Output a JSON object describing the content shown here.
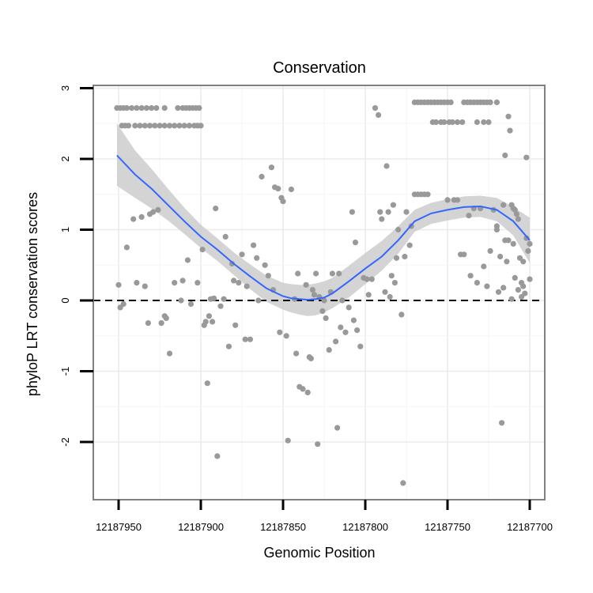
{
  "chart_data": {
    "type": "scatter",
    "title": "Conservation",
    "xlabel": "Genomic Position",
    "ylabel": "phyloP LRT conservation scores",
    "x_reversed": true,
    "xlim": [
      12187955,
      12187695
    ],
    "ylim": [
      -2.8,
      3.05
    ],
    "x_ticks": [
      12187950,
      12187900,
      12187850,
      12187800,
      12187750,
      12187700
    ],
    "x_tick_labels": [
      "12187950",
      "12187900",
      "12187850",
      "12187800",
      "12187750",
      "12187700"
    ],
    "y_ticks": [
      -2,
      -1,
      0,
      1,
      2,
      3
    ],
    "y_tick_labels": [
      "-2",
      "-1",
      "0",
      "1",
      "2",
      "3"
    ],
    "reference_line": {
      "y": 0,
      "style": "dashed"
    },
    "grid": true,
    "colors": {
      "points": "#999999",
      "smooth_line": "#3366ff",
      "confidence_band": "#cccccc",
      "panel_border": "#808080",
      "grid_major": "#ebebeb",
      "grid_minor": "#f5f5f5"
    },
    "series": [
      {
        "name": "phyloP scores",
        "type": "scatter",
        "points": [
          [
            12187951,
            2.72
          ],
          [
            12187949,
            2.72
          ],
          [
            12187947,
            2.72
          ],
          [
            12187945,
            2.72
          ],
          [
            12187942,
            2.72
          ],
          [
            12187939,
            2.72
          ],
          [
            12187936,
            2.72
          ],
          [
            12187933,
            2.72
          ],
          [
            12187930,
            2.72
          ],
          [
            12187927,
            2.72
          ],
          [
            12187922,
            2.72
          ],
          [
            12187914,
            2.72
          ],
          [
            12187911,
            2.72
          ],
          [
            12187909,
            2.72
          ],
          [
            12187907,
            2.72
          ],
          [
            12187905,
            2.72
          ],
          [
            12187903,
            2.72
          ],
          [
            12187901,
            2.72
          ],
          [
            12187948,
            2.47
          ],
          [
            12187946,
            2.47
          ],
          [
            12187944,
            2.47
          ],
          [
            12187940,
            2.47
          ],
          [
            12187937,
            2.47
          ],
          [
            12187934,
            2.47
          ],
          [
            12187931,
            2.47
          ],
          [
            12187928,
            2.47
          ],
          [
            12187925,
            2.47
          ],
          [
            12187922,
            2.47
          ],
          [
            12187919,
            2.47
          ],
          [
            12187916,
            2.47
          ],
          [
            12187913,
            2.47
          ],
          [
            12187910,
            2.47
          ],
          [
            12187907,
            2.47
          ],
          [
            12187904,
            2.47
          ],
          [
            12187902,
            2.47
          ],
          [
            12187900,
            2.47
          ],
          [
            12187950,
            0.22
          ],
          [
            12187949,
            -0.1
          ],
          [
            12187947,
            -0.05
          ],
          [
            12187945,
            0.75
          ],
          [
            12187941,
            1.15
          ],
          [
            12187939,
            0.25
          ],
          [
            12187936,
            1.18
          ],
          [
            12187934,
            0.2
          ],
          [
            12187932,
            -0.32
          ],
          [
            12187931,
            1.22
          ],
          [
            12187929,
            1.25
          ],
          [
            12187926,
            1.28
          ],
          [
            12187924,
            -0.32
          ],
          [
            12187922,
            -0.22
          ],
          [
            12187921,
            -0.25
          ],
          [
            12187919,
            -0.75
          ],
          [
            12187916,
            0.25
          ],
          [
            12187912,
            0.0
          ],
          [
            12187911,
            0.28
          ],
          [
            12187908,
            0.57
          ],
          [
            12187906,
            -0.05
          ],
          [
            12187902,
            0.25
          ],
          [
            12187899,
            0.72
          ],
          [
            12187898,
            -0.35
          ],
          [
            12187897,
            -0.3
          ],
          [
            12187896,
            -1.17
          ],
          [
            12187895,
            -0.22
          ],
          [
            12187894,
            0.02
          ],
          [
            12187893,
            -0.3
          ],
          [
            12187892,
            0.03
          ],
          [
            12187891,
            1.3
          ],
          [
            12187890,
            -2.2
          ],
          [
            12187888,
            -0.08
          ],
          [
            12187886,
            0.02
          ],
          [
            12187885,
            0.9
          ],
          [
            12187883,
            -0.65
          ],
          [
            12187881,
            0.52
          ],
          [
            12187880,
            0.28
          ],
          [
            12187879,
            -0.35
          ],
          [
            12187877,
            0.25
          ],
          [
            12187875,
            0.65
          ],
          [
            12187873,
            -0.55
          ],
          [
            12187872,
            0.2
          ],
          [
            12187870,
            -0.55
          ],
          [
            12187868,
            0.78
          ],
          [
            12187866,
            0.6
          ],
          [
            12187865,
            0.0
          ],
          [
            12187863,
            1.75
          ],
          [
            12187861,
            0.5
          ],
          [
            12187859,
            0.35
          ],
          [
            12187857,
            1.88
          ],
          [
            12187856,
            0.15
          ],
          [
            12187855,
            1.6
          ],
          [
            12187853,
            1.58
          ],
          [
            12187852,
            -0.45
          ],
          [
            12187851,
            1.45
          ],
          [
            12187850,
            1.4
          ],
          [
            12187848,
            -0.5
          ],
          [
            12187847,
            -1.98
          ],
          [
            12187845,
            1.57
          ],
          [
            12187843,
            0.02
          ],
          [
            12187842,
            -0.75
          ],
          [
            12187841,
            0.38
          ],
          [
            12187840,
            -1.22
          ],
          [
            12187838,
            -1.25
          ],
          [
            12187836,
            0.22
          ],
          [
            12187835,
            -1.3
          ],
          [
            12187834,
            -0.8
          ],
          [
            12187833,
            -0.82
          ],
          [
            12187832,
            0.15
          ],
          [
            12187831,
            0.08
          ],
          [
            12187830,
            0.38
          ],
          [
            12187829,
            -2.03
          ],
          [
            12187828,
            0.05
          ],
          [
            12187826,
            -0.15
          ],
          [
            12187825,
            0.0
          ],
          [
            12187824,
            -0.25
          ],
          [
            12187822,
            -0.7
          ],
          [
            12187821,
            0.12
          ],
          [
            12187820,
            0.38
          ],
          [
            12187818,
            -0.58
          ],
          [
            12187817,
            -1.8
          ],
          [
            12187816,
            0.38
          ],
          [
            12187815,
            -0.38
          ],
          [
            12187814,
            0.0
          ],
          [
            12187812,
            -0.45
          ],
          [
            12187810,
            -0.1
          ],
          [
            12187808,
            1.25
          ],
          [
            12187807,
            -0.28
          ],
          [
            12187806,
            0.82
          ],
          [
            12187805,
            -0.42
          ],
          [
            12187803,
            -0.65
          ],
          [
            12187801,
            0.32
          ],
          [
            12187799,
            0.3
          ],
          [
            12187798,
            0.08
          ],
          [
            12187796,
            0.3
          ],
          [
            12187794,
            2.72
          ],
          [
            12187792,
            2.62
          ],
          [
            12187791,
            1.25
          ],
          [
            12187790,
            1.15
          ],
          [
            12187788,
            0.12
          ],
          [
            12187787,
            1.9
          ],
          [
            12187786,
            1.25
          ],
          [
            12187785,
            0.05
          ],
          [
            12187784,
            0.35
          ],
          [
            12187783,
            1.35
          ],
          [
            12187782,
            0.25
          ],
          [
            12187781,
            0.6
          ],
          [
            12187780,
            1.0
          ],
          [
            12187778,
            -0.2
          ],
          [
            12187777,
            -2.58
          ],
          [
            12187776,
            0.62
          ],
          [
            12187775,
            1.25
          ],
          [
            12187773,
            0.78
          ],
          [
            12187772,
            1.05
          ],
          [
            12187770,
            2.8
          ],
          [
            12187768,
            2.8
          ],
          [
            12187766,
            2.8
          ],
          [
            12187764,
            2.8
          ],
          [
            12187762,
            2.8
          ],
          [
            12187760,
            2.8
          ],
          [
            12187758,
            2.8
          ],
          [
            12187756,
            2.8
          ],
          [
            12187754,
            2.8
          ],
          [
            12187752,
            2.8
          ],
          [
            12187750,
            2.8
          ],
          [
            12187748,
            2.8
          ],
          [
            12187740,
            2.8
          ],
          [
            12187738,
            2.8
          ],
          [
            12187736,
            2.8
          ],
          [
            12187734,
            2.8
          ],
          [
            12187732,
            2.8
          ],
          [
            12187730,
            2.8
          ],
          [
            12187728,
            2.8
          ],
          [
            12187726,
            2.8
          ],
          [
            12187724,
            2.8
          ],
          [
            12187720,
            2.8
          ],
          [
            12187759,
            2.52
          ],
          [
            12187757,
            2.52
          ],
          [
            12187754,
            2.52
          ],
          [
            12187752,
            2.52
          ],
          [
            12187749,
            2.52
          ],
          [
            12187747,
            2.52
          ],
          [
            12187744,
            2.52
          ],
          [
            12187741,
            2.52
          ],
          [
            12187732,
            2.52
          ],
          [
            12187728,
            2.52
          ],
          [
            12187725,
            2.52
          ],
          [
            12187770,
            1.5
          ],
          [
            12187768,
            1.5
          ],
          [
            12187766,
            1.5
          ],
          [
            12187764,
            1.5
          ],
          [
            12187762,
            1.5
          ],
          [
            12187750,
            1.42
          ],
          [
            12187746,
            1.42
          ],
          [
            12187744,
            1.42
          ],
          [
            12187742,
            0.65
          ],
          [
            12187740,
            0.65
          ],
          [
            12187737,
            1.2
          ],
          [
            12187736,
            0.35
          ],
          [
            12187734,
            1.3
          ],
          [
            12187732,
            0.25
          ],
          [
            12187730,
            1.3
          ],
          [
            12187728,
            0.48
          ],
          [
            12187726,
            0.2
          ],
          [
            12187724,
            0.7
          ],
          [
            12187722,
            1.28
          ],
          [
            12187720,
            1.0
          ],
          [
            12187718,
            0.62
          ],
          [
            12187716,
            1.35
          ],
          [
            12187715,
            0.85
          ],
          [
            12187714,
            0.55
          ],
          [
            12187713,
            2.6
          ],
          [
            12187712,
            2.4
          ],
          [
            12187711,
            1.35
          ],
          [
            12187710,
            1.3
          ],
          [
            12187709,
            1.28
          ],
          [
            12187708,
            1.22
          ],
          [
            12187707,
            1.15
          ],
          [
            12187706,
            0.6
          ],
          [
            12187705,
            0.05
          ],
          [
            12187704,
            0.2
          ],
          [
            12187703,
            0.1
          ],
          [
            12187702,
            0.88
          ],
          [
            12187701,
            0.7
          ],
          [
            12187700,
            0.8
          ],
          [
            12187720,
            1.05
          ],
          [
            12187719,
            0.12
          ],
          [
            12187717,
            -1.73
          ],
          [
            12187716,
            0.18
          ],
          [
            12187715,
            2.05
          ],
          [
            12187713,
            0.85
          ],
          [
            12187711,
            0.02
          ],
          [
            12187710,
            0.8
          ],
          [
            12187709,
            0.32
          ],
          [
            12187707,
            0.15
          ],
          [
            12187705,
            0.25
          ],
          [
            12187704,
            0.55
          ],
          [
            12187702,
            2.02
          ],
          [
            12187700,
            0.3
          ]
        ]
      },
      {
        "name": "loess fit",
        "type": "line",
        "x": [
          12187951,
          12187940,
          12187930,
          12187920,
          12187910,
          12187900,
          12187890,
          12187880,
          12187870,
          12187860,
          12187850,
          12187845,
          12187840,
          12187835,
          12187830,
          12187825,
          12187820,
          12187810,
          12187800,
          12187790,
          12187780,
          12187770,
          12187760,
          12187750,
          12187740,
          12187730,
          12187720,
          12187710,
          12187700
        ],
        "y": [
          2.05,
          1.78,
          1.58,
          1.35,
          1.12,
          0.9,
          0.72,
          0.52,
          0.34,
          0.17,
          0.06,
          0.03,
          0.02,
          0.01,
          0.02,
          0.04,
          0.1,
          0.27,
          0.45,
          0.62,
          0.85,
          1.12,
          1.23,
          1.28,
          1.32,
          1.33,
          1.28,
          1.12,
          0.85
        ],
        "lower": [
          1.62,
          1.45,
          1.3,
          1.13,
          0.94,
          0.74,
          0.56,
          0.36,
          0.16,
          -0.02,
          -0.13,
          -0.17,
          -0.2,
          -0.22,
          -0.21,
          -0.17,
          -0.11,
          0.04,
          0.23,
          0.42,
          0.66,
          0.97,
          1.08,
          1.13,
          1.17,
          1.18,
          1.12,
          0.92,
          0.53
        ],
        "upper": [
          2.5,
          2.12,
          1.86,
          1.58,
          1.31,
          1.07,
          0.88,
          0.68,
          0.51,
          0.35,
          0.25,
          0.23,
          0.22,
          0.22,
          0.24,
          0.27,
          0.32,
          0.49,
          0.67,
          0.84,
          1.05,
          1.28,
          1.38,
          1.43,
          1.47,
          1.48,
          1.45,
          1.32,
          1.17
        ]
      }
    ]
  }
}
